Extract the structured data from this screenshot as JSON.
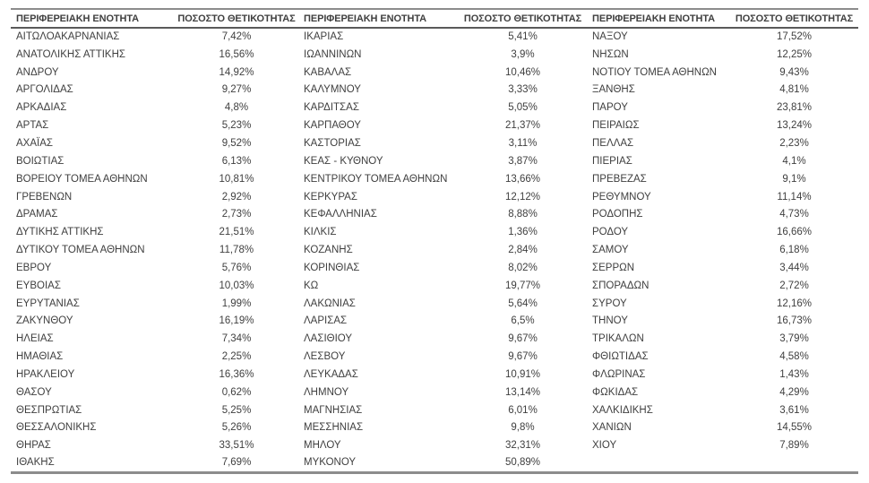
{
  "page": {
    "background_color": "#ffffff",
    "text_color": "#3f3f3f",
    "rule_color": "#8c8c8c"
  },
  "table": {
    "header": {
      "region": "ΠΕΡΙΦΕΡΕΙΑΚΗ ΕΝΟΤΗΤΑ",
      "positivity": "ΠΟΣΟΣΤΟ ΘΕΤΙΚΟΤΗΤΑΣ"
    },
    "groups": [
      {
        "rows": [
          {
            "region": "ΑΙΤΩΛΟΑΚΑΡΝΑΝΙΑΣ",
            "positivity": "7,42%"
          },
          {
            "region": "ΑΝΑΤΟΛΙΚΗΣ ΑΤΤΙΚΗΣ",
            "positivity": "16,56%"
          },
          {
            "region": "ΑΝΔΡΟΥ",
            "positivity": "14,92%"
          },
          {
            "region": "ΑΡΓΟΛΙΔΑΣ",
            "positivity": "9,27%"
          },
          {
            "region": "ΑΡΚΑΔΙΑΣ",
            "positivity": "4,8%"
          },
          {
            "region": "ΑΡΤΑΣ",
            "positivity": "5,23%"
          },
          {
            "region": "ΑΧΑΪΑΣ",
            "positivity": "9,52%"
          },
          {
            "region": "ΒΟΙΩΤΙΑΣ",
            "positivity": "6,13%"
          },
          {
            "region": "ΒΟΡΕΙΟΥ ΤΟΜΕΑ ΑΘΗΝΩΝ",
            "positivity": "10,81%"
          },
          {
            "region": "ΓΡΕΒΕΝΩΝ",
            "positivity": "2,92%"
          },
          {
            "region": "ΔΡΑΜΑΣ",
            "positivity": "2,73%"
          },
          {
            "region": "ΔΥΤΙΚΗΣ ΑΤΤΙΚΗΣ",
            "positivity": "21,51%"
          },
          {
            "region": "ΔΥΤΙΚΟΥ ΤΟΜΕΑ ΑΘΗΝΩΝ",
            "positivity": "11,78%"
          },
          {
            "region": "ΕΒΡΟΥ",
            "positivity": "5,76%"
          },
          {
            "region": "ΕΥΒΟΙΑΣ",
            "positivity": "10,03%"
          },
          {
            "region": "ΕΥΡΥΤΑΝΙΑΣ",
            "positivity": "1,99%"
          },
          {
            "region": "ΖΑΚΥΝΘΟΥ",
            "positivity": "16,19%"
          },
          {
            "region": "ΗΛΕΙΑΣ",
            "positivity": "7,34%"
          },
          {
            "region": "ΗΜΑΘΙΑΣ",
            "positivity": "2,25%"
          },
          {
            "region": "ΗΡΑΚΛΕΙΟΥ",
            "positivity": "16,36%"
          },
          {
            "region": "ΘΑΣΟΥ",
            "positivity": "0,62%"
          },
          {
            "region": "ΘΕΣΠΡΩΤΙΑΣ",
            "positivity": "5,25%"
          },
          {
            "region": "ΘΕΣΣΑΛΟΝΙΚΗΣ",
            "positivity": "5,26%"
          },
          {
            "region": "ΘΗΡΑΣ",
            "positivity": "33,51%"
          },
          {
            "region": "ΙΘΑΚΗΣ",
            "positivity": "7,69%"
          }
        ]
      },
      {
        "rows": [
          {
            "region": "ΙΚΑΡΙΑΣ",
            "positivity": "5,41%"
          },
          {
            "region": "ΙΩΑΝΝΙΝΩΝ",
            "positivity": "3,9%"
          },
          {
            "region": "ΚΑΒΑΛΑΣ",
            "positivity": "10,46%"
          },
          {
            "region": "ΚΑΛΥΜΝΟΥ",
            "positivity": "3,33%"
          },
          {
            "region": "ΚΑΡΔΙΤΣΑΣ",
            "positivity": "5,05%"
          },
          {
            "region": "ΚΑΡΠΑΘΟΥ",
            "positivity": "21,37%"
          },
          {
            "region": "ΚΑΣΤΟΡΙΑΣ",
            "positivity": "3,11%"
          },
          {
            "region": "ΚΕΑΣ - ΚΥΘΝΟΥ",
            "positivity": "3,87%"
          },
          {
            "region": "ΚΕΝΤΡΙΚΟΥ ΤΟΜΕΑ ΑΘΗΝΩΝ",
            "positivity": "13,66%"
          },
          {
            "region": "ΚΕΡΚΥΡΑΣ",
            "positivity": "12,12%"
          },
          {
            "region": "ΚΕΦΑΛΛΗΝΙΑΣ",
            "positivity": "8,88%"
          },
          {
            "region": "ΚΙΛΚΙΣ",
            "positivity": "1,36%"
          },
          {
            "region": "ΚΟΖΑΝΗΣ",
            "positivity": "2,84%"
          },
          {
            "region": "ΚΟΡΙΝΘΙΑΣ",
            "positivity": "8,02%"
          },
          {
            "region": "ΚΩ",
            "positivity": "19,77%"
          },
          {
            "region": "ΛΑΚΩΝΙΑΣ",
            "positivity": "5,64%"
          },
          {
            "region": "ΛΑΡΙΣΑΣ",
            "positivity": "6,5%"
          },
          {
            "region": "ΛΑΣΙΘΙΟΥ",
            "positivity": "9,67%"
          },
          {
            "region": "ΛΕΣΒΟΥ",
            "positivity": "9,67%"
          },
          {
            "region": "ΛΕΥΚΑΔΑΣ",
            "positivity": "10,91%"
          },
          {
            "region": "ΛΗΜΝΟΥ",
            "positivity": "13,14%"
          },
          {
            "region": "ΜΑΓΝΗΣΙΑΣ",
            "positivity": "6,01%"
          },
          {
            "region": "ΜΕΣΣΗΝΙΑΣ",
            "positivity": "9,8%"
          },
          {
            "region": "ΜΗΛΟΥ",
            "positivity": "32,31%"
          },
          {
            "region": "ΜΥΚΟΝΟΥ",
            "positivity": "50,89%"
          }
        ]
      },
      {
        "rows": [
          {
            "region": "ΝΑΞΟΥ",
            "positivity": "17,52%"
          },
          {
            "region": "ΝΗΣΩΝ",
            "positivity": "12,25%"
          },
          {
            "region": "ΝΟΤΙΟΥ ΤΟΜΕΑ ΑΘΗΝΩΝ",
            "positivity": "9,43%"
          },
          {
            "region": "ΞΑΝΘΗΣ",
            "positivity": "4,81%"
          },
          {
            "region": "ΠΑΡΟΥ",
            "positivity": "23,81%"
          },
          {
            "region": "ΠΕΙΡΑΙΩΣ",
            "positivity": "13,24%"
          },
          {
            "region": "ΠΕΛΛΑΣ",
            "positivity": "2,23%"
          },
          {
            "region": "ΠΙΕΡΙΑΣ",
            "positivity": "4,1%"
          },
          {
            "region": "ΠΡΕΒΕΖΑΣ",
            "positivity": "9,1%"
          },
          {
            "region": "ΡΕΘΥΜΝΟΥ",
            "positivity": "11,14%"
          },
          {
            "region": "ΡΟΔΟΠΗΣ",
            "positivity": "4,73%"
          },
          {
            "region": "ΡΟΔΟΥ",
            "positivity": "16,66%"
          },
          {
            "region": "ΣΑΜΟΥ",
            "positivity": "6,18%"
          },
          {
            "region": "ΣΕΡΡΩΝ",
            "positivity": "3,44%"
          },
          {
            "region": "ΣΠΟΡΑΔΩΝ",
            "positivity": "2,72%"
          },
          {
            "region": "ΣΥΡΟΥ",
            "positivity": "12,16%"
          },
          {
            "region": "ΤΗΝΟΥ",
            "positivity": "16,73%"
          },
          {
            "region": "ΤΡΙΚΑΛΩΝ",
            "positivity": "3,79%"
          },
          {
            "region": "ΦΘΙΩΤΙΔΑΣ",
            "positivity": "4,58%"
          },
          {
            "region": "ΦΛΩΡΙΝΑΣ",
            "positivity": "1,43%"
          },
          {
            "region": "ΦΩΚΙΔΑΣ",
            "positivity": "4,29%"
          },
          {
            "region": "ΧΑΛΚΙΔΙΚΗΣ",
            "positivity": "3,61%"
          },
          {
            "region": "ΧΑΝΙΩΝ",
            "positivity": "14,55%"
          },
          {
            "region": "ΧΙΟΥ",
            "positivity": "7,89%"
          }
        ]
      }
    ]
  }
}
